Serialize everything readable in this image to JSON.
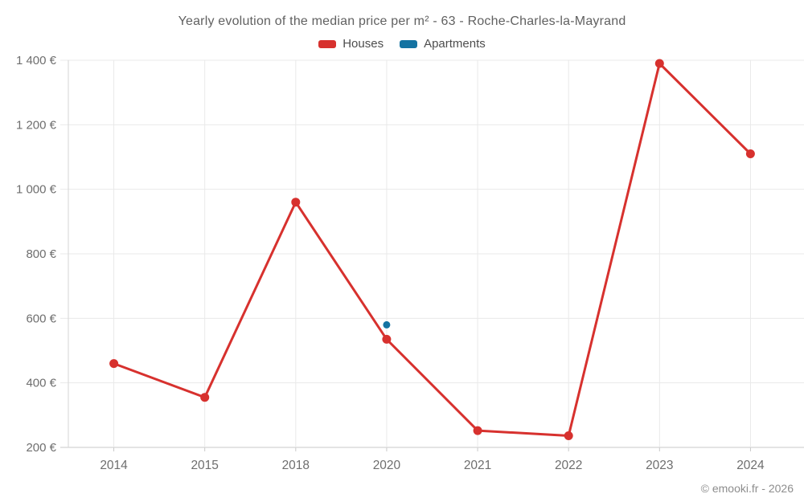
{
  "title": "Yearly evolution of the median price per m² - 63 - Roche-Charles-la-Mayrand",
  "legend": {
    "items": [
      {
        "label": "Houses",
        "color": "#d7312e"
      },
      {
        "label": "Apartments",
        "color": "#1473a2"
      }
    ]
  },
  "footer": {
    "copyright": "© emooki.fr - 2026"
  },
  "colors": {
    "houses": "#d7312e",
    "apartments": "#1473a2",
    "gridline": "#e9e9e9",
    "axis_line": "#c9c9c9",
    "tick_label": "#6e6e6e"
  },
  "chart_data": {
    "type": "line",
    "title": "Yearly evolution of the median price per m² - 63 - Roche-Charles-la-Mayrand",
    "xlabel": "",
    "ylabel": "",
    "categories": [
      "2014",
      "2015",
      "2018",
      "2020",
      "2021",
      "2022",
      "2023",
      "2024"
    ],
    "series": [
      {
        "name": "Houses",
        "color": "#d7312e",
        "values": [
          460,
          355,
          960,
          535,
          252,
          236,
          1390,
          1110
        ]
      },
      {
        "name": "Apartments",
        "color": "#1473a2",
        "values": [
          null,
          null,
          null,
          580,
          null,
          null,
          null,
          null
        ]
      }
    ],
    "ylim": [
      200,
      1400
    ],
    "ytick_step": 200,
    "ytick_labels": [
      "200 €",
      "400 €",
      "600 €",
      "800 €",
      "1 000 €",
      "1 200 €",
      "1 400 €"
    ],
    "grid": true,
    "legend_position": "top"
  }
}
